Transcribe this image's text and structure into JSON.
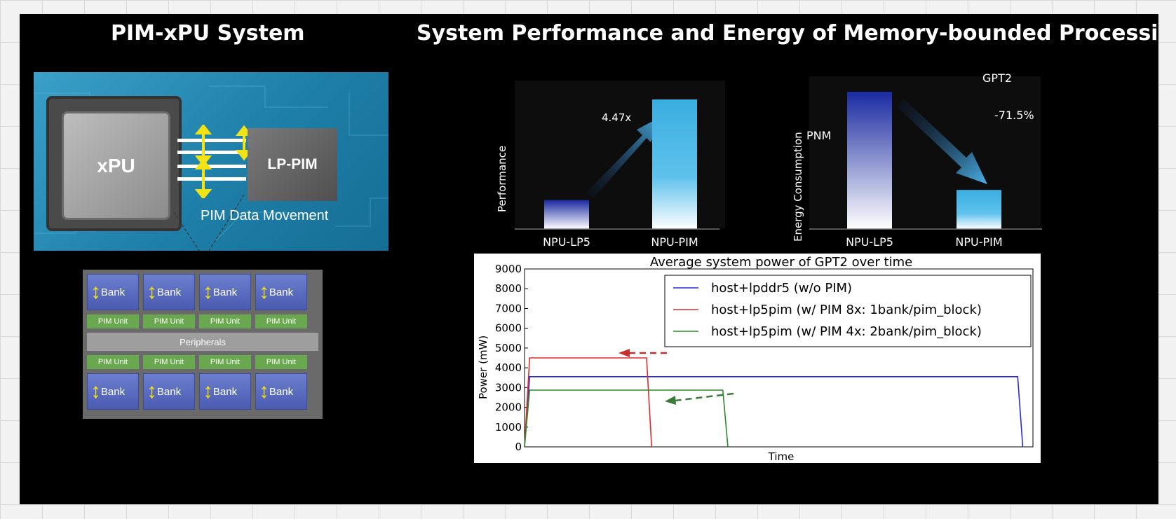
{
  "titles": {
    "left": "PIM-xPU System",
    "right": "System Performance and Energy of Memory-bounded Processing"
  },
  "system_diagram": {
    "xpu_label": "xPU",
    "lppim_label": "LP-PIM",
    "data_movement_label": "PIM Data Movement"
  },
  "bank_diagram": {
    "bank_label": "Bank",
    "pim_unit_label": "PIM Unit",
    "peripherals_label": "Peripherals"
  },
  "chart_data": [
    {
      "type": "bar",
      "categories": [
        "NPU-LP5",
        "NPU-PIM"
      ],
      "values": [
        1,
        4.47
      ],
      "ylabel": "Performance",
      "annotation": "4.47x"
    },
    {
      "type": "bar",
      "categories": [
        "NPU-LP5",
        "NPU-PIM"
      ],
      "values": [
        100,
        28.5
      ],
      "ylabel": "Energy Consumption",
      "labels": [
        "GPT2",
        "PNM"
      ],
      "annotation": "-71.5%"
    },
    {
      "type": "line",
      "title": "Average system power of GPT2 over time",
      "xlabel": "Time",
      "ylabel": "Power (mW)",
      "ylim": [
        0,
        9000
      ],
      "yticks": [
        0,
        1000,
        2000,
        3000,
        4000,
        5000,
        6000,
        7000,
        8000,
        9000
      ],
      "xlim": [
        0,
        100
      ],
      "grid": false,
      "legend_position": "top-right",
      "series": [
        {
          "name": "host+lpddr5 (w/o PIM)",
          "color": "#2a2ae0",
          "x": [
            0,
            1,
            97,
            98
          ],
          "y": [
            0,
            3550,
            3550,
            0
          ]
        },
        {
          "name": "host+lp5pim (w/ PIM 8x: 1bank/pim_block)",
          "color": "#e02a2a",
          "x": [
            0,
            1,
            24,
            25
          ],
          "y": [
            0,
            4500,
            4500,
            0
          ]
        },
        {
          "name": "host+lp5pim (w/ PIM 4x: 2bank/pim_block)",
          "color": "#2a8a2a",
          "x": [
            0,
            1,
            39,
            40
          ],
          "y": [
            0,
            2870,
            2870,
            0
          ]
        }
      ]
    }
  ]
}
